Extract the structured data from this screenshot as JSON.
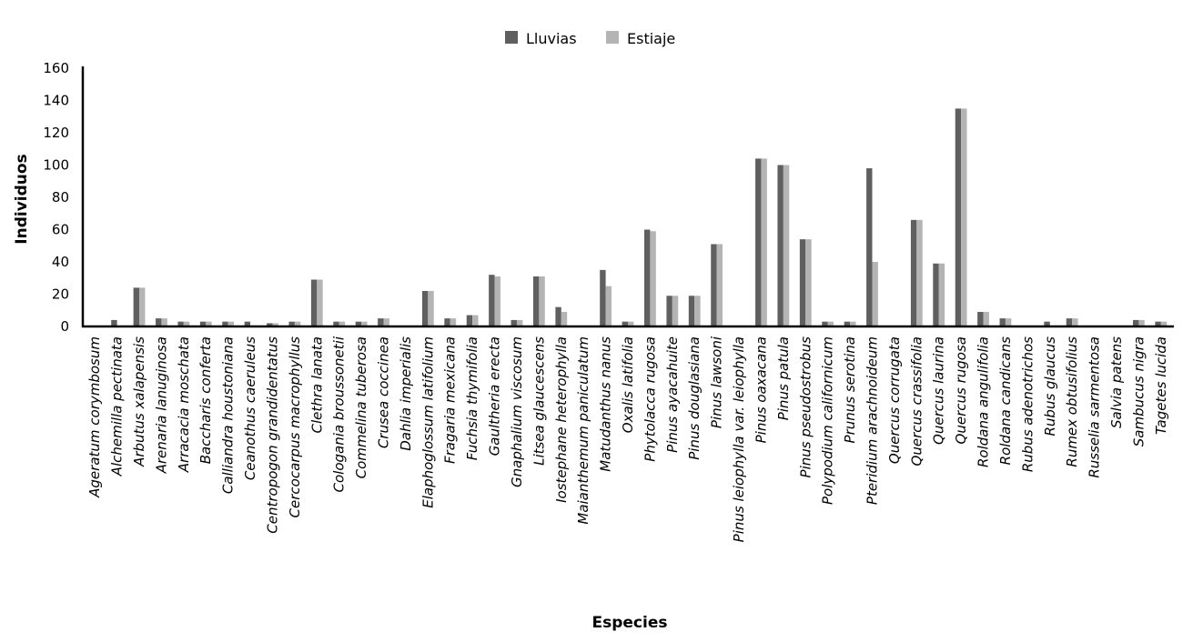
{
  "chart_data": {
    "type": "bar",
    "title": "",
    "xlabel": "Especies",
    "ylabel": "Individuos",
    "ylim": [
      0,
      160
    ],
    "yticks": [
      0,
      20,
      40,
      60,
      80,
      100,
      120,
      140,
      160
    ],
    "grid": false,
    "legend_position": "top-center",
    "colors": {
      "Lluvias": "#5f5f5f",
      "Estiaje": "#b4b4b4"
    },
    "categories": [
      "Ageratum corymbosum",
      "Alchemilla pectinata",
      "Arbutus xalapensis",
      "Arenaria lanuginosa",
      "Arracacia moschata",
      "Baccharis conferta",
      "Calliandra houstoniana",
      "Ceanothus caeruleus",
      "Centropogon grandidentatus",
      "Cercocarpus macrophyllus",
      "Clethra lanata",
      "Cologania broussonetii",
      "Commelina tuberosa",
      "Crusea coccinea",
      "Dahlia imperialis",
      "Elaphoglossum latifolium",
      "Fragaria mexicana",
      "Fuchsia thymifolia",
      "Gaultheria erecta",
      "Gnaphalium viscosum",
      "Litsea glaucescens",
      "Iostephane heterophylla",
      "Maianthemum paniculatum",
      "Matudanthus nanus",
      "Oxalis latifolia",
      "Phytolacca rugosa",
      "Pinus ayacahuite",
      "Pinus douglasiana",
      "Pinus lawsoni",
      "Pinus leiophylla var. leiophylla",
      "Pinus oaxacana",
      "Pinus patula",
      "Pinus pseudostrobus",
      "Polypodium californicum",
      "Prunus serotina",
      "Pteridium arachnoideum",
      "Quercus corrugata",
      "Quercus crassifolia",
      "Quercus laurina",
      "Quercus rugosa",
      "Roldana angulifolia",
      "Roldana candicans",
      "Rubus adenotrichos",
      "Rubus glaucus",
      "Rumex obtusifolius",
      "Russelia sarmentosa",
      "Salvia patens",
      "Sambucus nigra",
      "Tagetes lucida"
    ],
    "series": [
      {
        "name": "Lluvias",
        "values": [
          0,
          4,
          24,
          5,
          3,
          3,
          3,
          3,
          2,
          3,
          29,
          3,
          3,
          5,
          0,
          22,
          5,
          7,
          32,
          4,
          31,
          12,
          0,
          35,
          3,
          60,
          19,
          19,
          51,
          0,
          104,
          100,
          54,
          3,
          3,
          98,
          0,
          66,
          39,
          135,
          9,
          5,
          0,
          3,
          5,
          0,
          0,
          4,
          3
        ]
      },
      {
        "name": "Estiaje",
        "values": [
          0,
          0,
          24,
          5,
          3,
          3,
          3,
          0,
          2,
          3,
          29,
          3,
          3,
          5,
          0,
          22,
          5,
          7,
          31,
          4,
          31,
          9,
          0,
          25,
          3,
          59,
          19,
          19,
          51,
          0,
          104,
          100,
          54,
          3,
          3,
          40,
          0,
          66,
          39,
          135,
          9,
          5,
          0,
          0,
          5,
          0,
          0,
          4,
          3
        ]
      }
    ]
  }
}
